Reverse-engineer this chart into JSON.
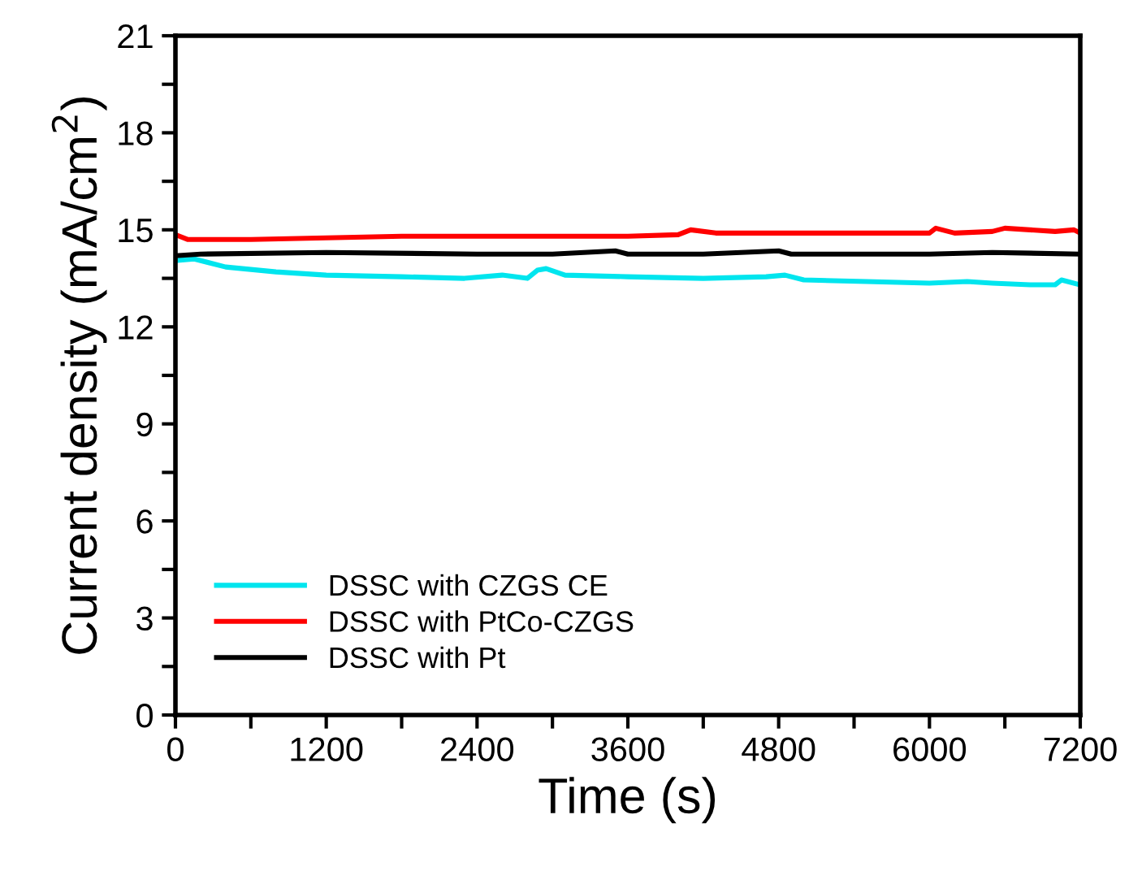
{
  "chart_data": {
    "type": "line",
    "xlabel": "Time (s)",
    "ylabel": "Current density (mA/cm$^{2}$)",
    "xlim": [
      0,
      7200
    ],
    "ylim": [
      0,
      21
    ],
    "xticks": [
      0,
      {
        "value": 600,
        "label": null
      },
      1200,
      {
        "value": 1800,
        "label": null
      },
      2400,
      {
        "value": 3000,
        "label": null
      },
      3600,
      {
        "value": 4200,
        "label": null
      },
      4800,
      {
        "value": 5400,
        "label": null
      },
      6000,
      {
        "value": 6600,
        "label": null
      },
      7200
    ],
    "yticks": [
      0,
      {
        "value": 1.5,
        "label": null
      },
      3,
      {
        "value": 4.5,
        "label": null
      },
      6,
      {
        "value": 7.5,
        "label": null
      },
      9,
      {
        "value": 10.5,
        "label": null
      },
      12,
      {
        "value": 13.5,
        "label": null
      },
      15,
      {
        "value": 16.5,
        "label": null
      },
      18,
      {
        "value": 19.5,
        "label": null
      },
      21
    ],
    "grid": false,
    "legend": "bottom left",
    "marker": "none",
    "line_style": "solid",
    "series": [
      {
        "name": "DSSC with CZGS CE",
        "color": "#00e5ee",
        "x": [
          0,
          150,
          400,
          800,
          1200,
          1800,
          2300,
          2600,
          2700,
          2800,
          2880,
          2950,
          3100,
          3600,
          4200,
          4700,
          4850,
          5000,
          5500,
          6000,
          6300,
          6500,
          6800,
          7000,
          7050,
          7200
        ],
        "values": [
          14.05,
          14.1,
          13.85,
          13.7,
          13.6,
          13.55,
          13.5,
          13.6,
          13.55,
          13.5,
          13.75,
          13.8,
          13.6,
          13.55,
          13.5,
          13.55,
          13.6,
          13.45,
          13.4,
          13.35,
          13.4,
          13.35,
          13.3,
          13.3,
          13.45,
          13.3
        ]
      },
      {
        "name": "DSSC with PtCo-CZGS",
        "color": "#ff0000",
        "x": [
          0,
          100,
          600,
          1200,
          1800,
          2400,
          3000,
          3600,
          4000,
          4100,
          4300,
          4800,
          5400,
          6000,
          6050,
          6200,
          6500,
          6600,
          7000,
          7150,
          7200
        ],
        "values": [
          14.85,
          14.7,
          14.7,
          14.75,
          14.8,
          14.8,
          14.8,
          14.8,
          14.85,
          15.0,
          14.9,
          14.9,
          14.9,
          14.9,
          15.05,
          14.9,
          14.95,
          15.05,
          14.95,
          15.0,
          14.9
        ]
      },
      {
        "name": "DSSC with Pt",
        "color": "#000000",
        "x": [
          0,
          200,
          1200,
          2400,
          3000,
          3500,
          3600,
          4200,
          4800,
          4900,
          5400,
          6000,
          6500,
          7200
        ],
        "values": [
          14.2,
          14.25,
          14.3,
          14.25,
          14.25,
          14.35,
          14.25,
          14.25,
          14.35,
          14.25,
          14.25,
          14.25,
          14.3,
          14.25
        ]
      }
    ]
  }
}
